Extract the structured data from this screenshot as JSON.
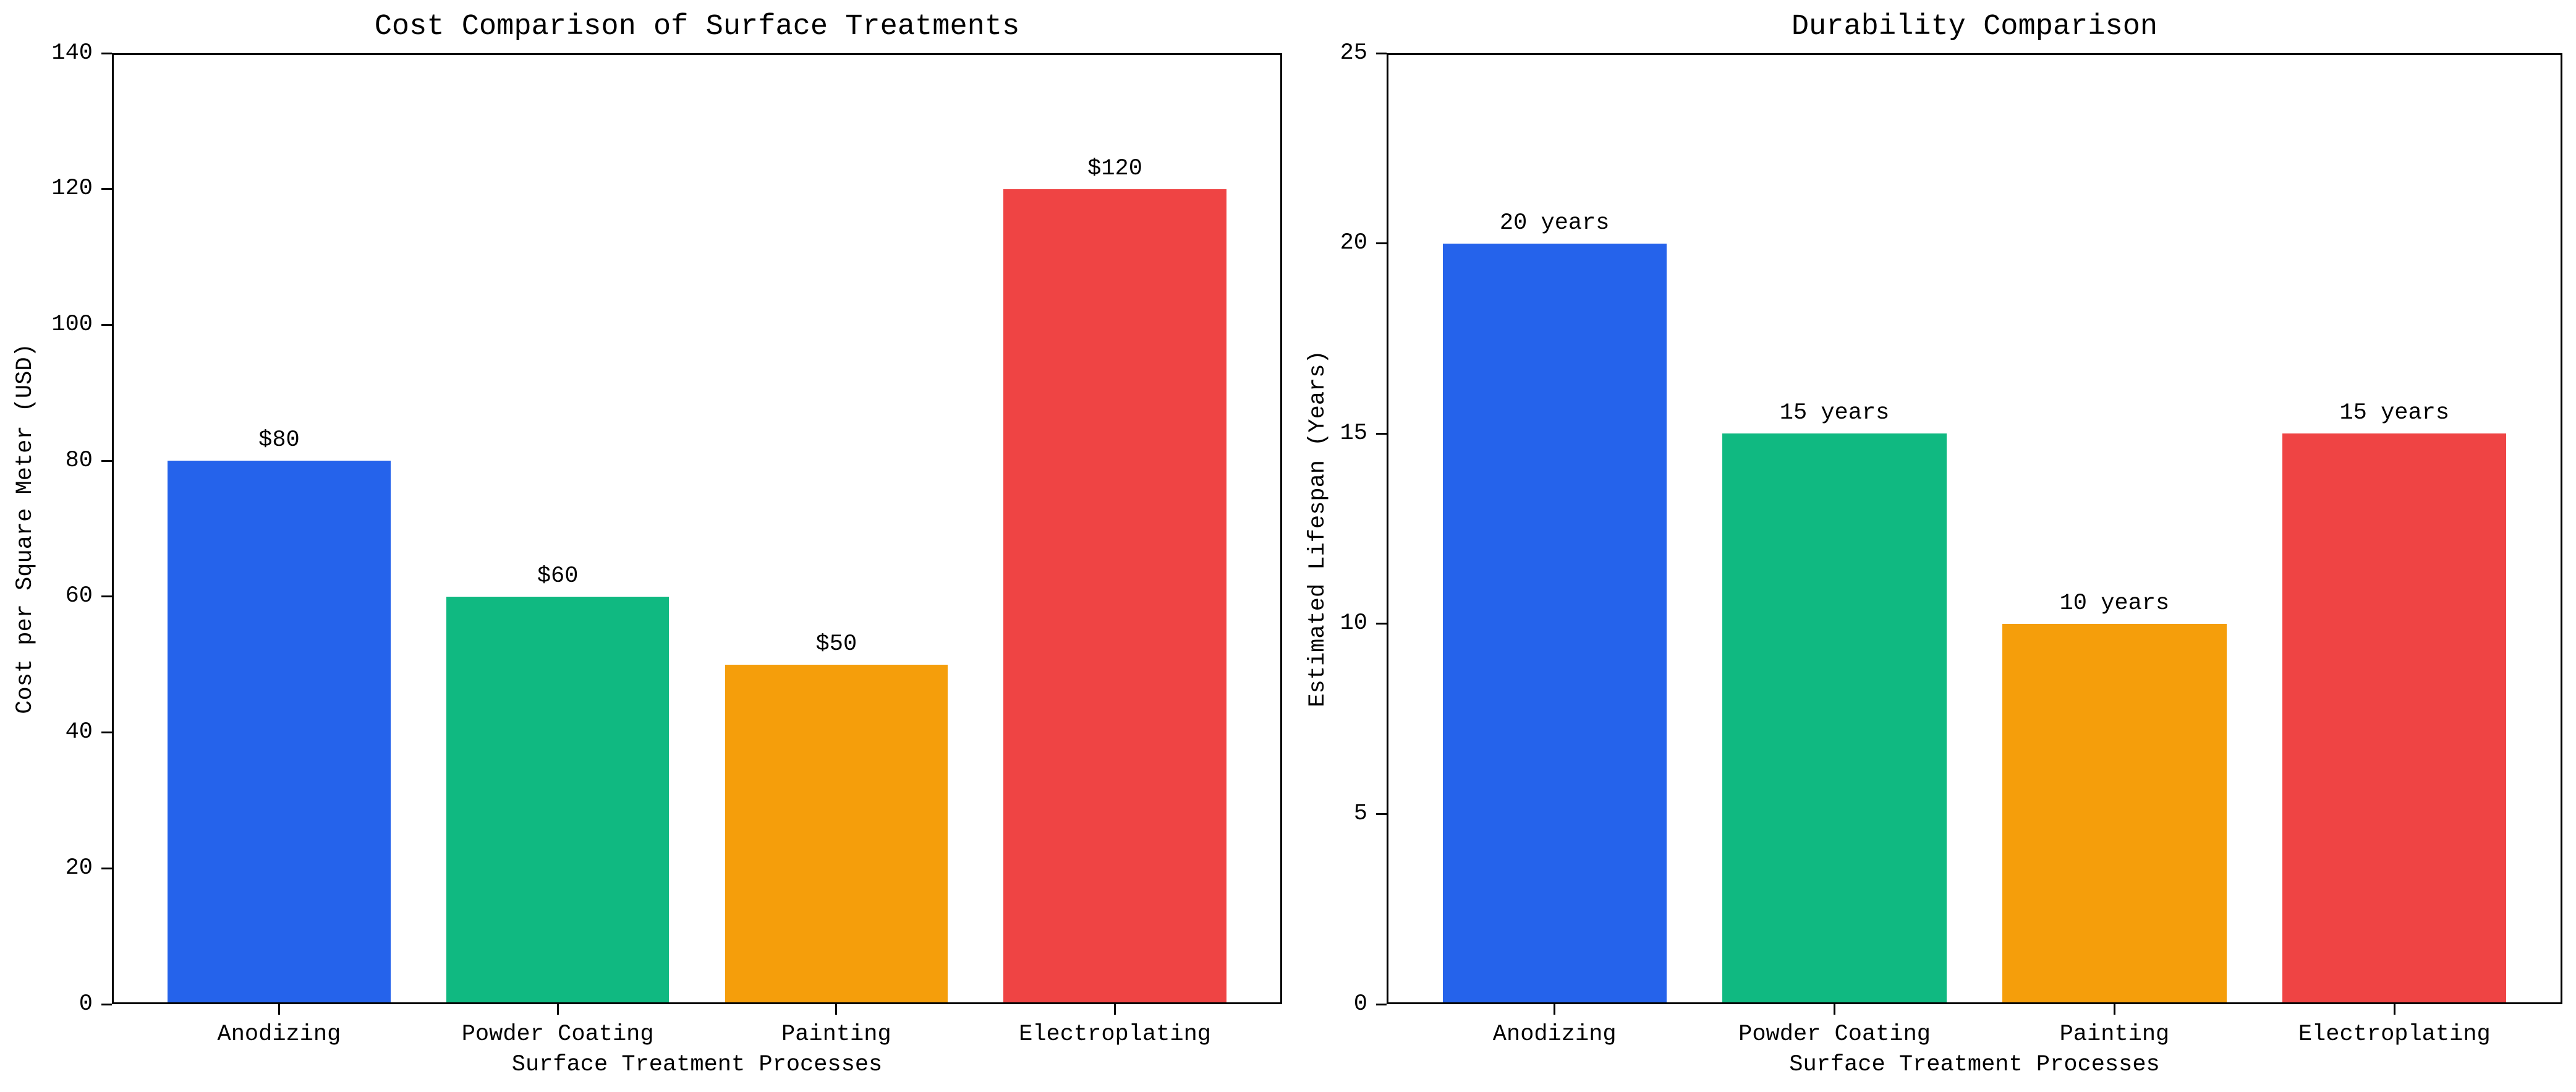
{
  "figure": {
    "background_color": "#ffffff",
    "text_color": "#000000",
    "spine_color": "#000000"
  },
  "chart_data": [
    {
      "type": "bar",
      "title": "Cost Comparison of Surface Treatments",
      "xlabel": "Surface Treatment Processes",
      "ylabel": "Cost per Square Meter (USD)",
      "categories": [
        "Anodizing",
        "Powder Coating",
        "Painting",
        "Electroplating"
      ],
      "values": [
        80,
        60,
        50,
        120
      ],
      "bar_labels": [
        "$80",
        "$60",
        "$50",
        "$120"
      ],
      "bar_colors": [
        "#2563eb",
        "#10b981",
        "#f59e0b",
        "#ef4444"
      ],
      "ylim": [
        0,
        140
      ],
      "yticks": [
        0,
        20,
        40,
        60,
        80,
        100,
        120,
        140
      ],
      "ytick_labels": [
        "0",
        "20",
        "40",
        "60",
        "80",
        "100",
        "120",
        "140"
      ],
      "grid": false,
      "legend": null
    },
    {
      "type": "bar",
      "title": "Durability Comparison",
      "xlabel": "Surface Treatment Processes",
      "ylabel": "Estimated Lifespan (Years)",
      "categories": [
        "Anodizing",
        "Powder Coating",
        "Painting",
        "Electroplating"
      ],
      "values": [
        20,
        15,
        10,
        15
      ],
      "bar_labels": [
        "20 years",
        "15 years",
        "10 years",
        "15 years"
      ],
      "bar_colors": [
        "#2563eb",
        "#10b981",
        "#f59e0b",
        "#ef4444"
      ],
      "ylim": [
        0,
        25
      ],
      "yticks": [
        0,
        5,
        10,
        15,
        20,
        25
      ],
      "ytick_labels": [
        "0",
        "5",
        "10",
        "15",
        "20",
        "25"
      ],
      "grid": false,
      "legend": null
    }
  ]
}
